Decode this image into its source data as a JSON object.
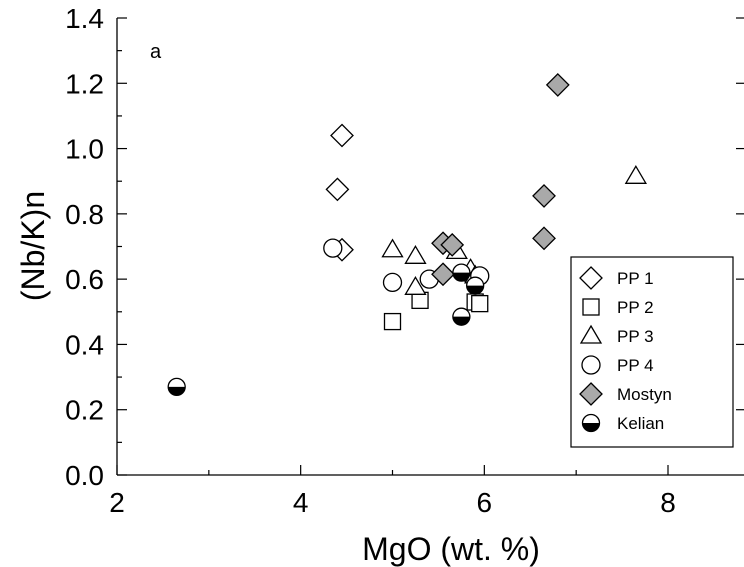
{
  "chart_data": {
    "type": "scatter",
    "panel_label": "a",
    "xlabel": "MgO (wt. %)",
    "ylabel": "(Nb/K)n",
    "xlim": [
      2,
      8.8
    ],
    "ylim": [
      0,
      1.4
    ],
    "x_ticks": [
      2,
      4,
      6,
      8
    ],
    "y_ticks": [
      "0.0",
      "0.2",
      "0.4",
      "0.6",
      "0.8",
      "1.0",
      "1.2",
      "1.4"
    ],
    "grid": false,
    "legend_position": "lower-right",
    "series": [
      {
        "name": "PP 1",
        "marker": "diamond-open",
        "points": [
          [
            4.45,
            1.04
          ],
          [
            4.4,
            0.875
          ],
          [
            4.45,
            0.69
          ],
          [
            5.85,
            0.61
          ]
        ]
      },
      {
        "name": "PP 2",
        "marker": "square-open",
        "points": [
          [
            5.0,
            0.47
          ],
          [
            5.3,
            0.535
          ],
          [
            5.9,
            0.53
          ],
          [
            5.95,
            0.525
          ]
        ]
      },
      {
        "name": "PP 3",
        "marker": "triangle-open",
        "points": [
          [
            5.0,
            0.69
          ],
          [
            5.25,
            0.67
          ],
          [
            5.25,
            0.575
          ],
          [
            5.7,
            0.685
          ],
          [
            5.85,
            0.63
          ],
          [
            5.9,
            0.61
          ],
          [
            7.65,
            0.915
          ]
        ]
      },
      {
        "name": "PP 4",
        "marker": "circle-open",
        "points": [
          [
            4.35,
            0.695
          ],
          [
            5.0,
            0.59
          ],
          [
            5.4,
            0.6
          ],
          [
            5.95,
            0.61
          ]
        ]
      },
      {
        "name": "Mostyn",
        "marker": "diamond-gray",
        "points": [
          [
            5.55,
            0.71
          ],
          [
            5.65,
            0.705
          ],
          [
            5.55,
            0.615
          ],
          [
            6.8,
            1.195
          ],
          [
            6.65,
            0.855
          ],
          [
            6.65,
            0.725
          ]
        ]
      },
      {
        "name": "Kelian",
        "marker": "circle-half",
        "points": [
          [
            2.65,
            0.27
          ],
          [
            5.75,
            0.62
          ],
          [
            5.9,
            0.58
          ],
          [
            5.75,
            0.485
          ]
        ]
      }
    ]
  }
}
